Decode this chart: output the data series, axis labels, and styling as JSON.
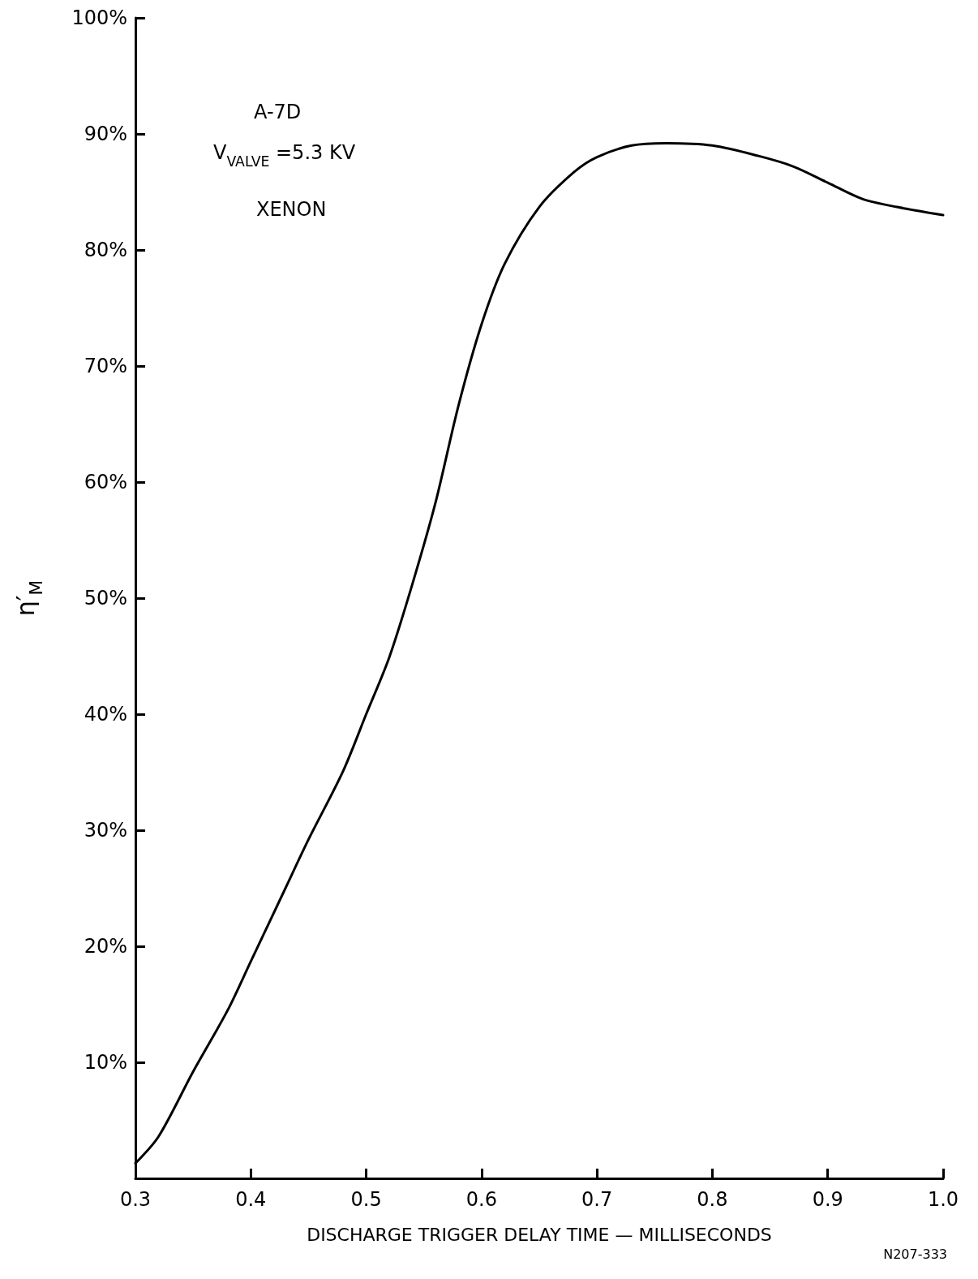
{
  "chart_data": {
    "type": "line",
    "xlabel": "DISCHARGE TRIGGER DELAY TIME — MILLISECONDS",
    "ylabel": "η′$_{M}$",
    "annotations": [
      "A-7D",
      "V$_{VALVE}$ =5.3 KV",
      "XENON",
      "N207-333"
    ],
    "x": [
      0.3,
      0.32,
      0.35,
      0.38,
      0.4,
      0.43,
      0.45,
      0.48,
      0.5,
      0.52,
      0.54,
      0.56,
      0.58,
      0.6,
      0.62,
      0.65,
      0.68,
      0.7,
      0.73,
      0.76,
      0.8,
      0.84,
      0.87,
      0.9,
      0.93,
      0.96,
      1.0
    ],
    "series": [
      {
        "color": "#000000",
        "values": [
          1.3,
          3.6,
          9.2,
          14.5,
          18.7,
          25,
          29.2,
          35.1,
          40,
          44.9,
          51.2,
          58.2,
          66.6,
          73.6,
          78.8,
          83.7,
          86.7,
          88,
          89,
          89.2,
          89,
          88.1,
          87.2,
          85.8,
          84.4,
          83.7,
          83
        ]
      }
    ],
    "xlim": [
      0.3,
      1.0
    ],
    "ylim": [
      0,
      100
    ],
    "xticks": [
      0.3,
      0.4,
      0.5,
      0.6,
      0.7,
      0.8,
      0.9,
      {
        "value": 1.0,
        "label": "1.0"
      }
    ],
    "yticks": [
      {
        "value": 10,
        "label": "10%"
      },
      {
        "value": 20,
        "label": "20%"
      },
      {
        "value": 30,
        "label": "30%"
      },
      {
        "value": 40,
        "label": "40%"
      },
      {
        "value": 50,
        "label": "50%"
      },
      {
        "value": 60,
        "label": "60%"
      },
      {
        "value": 70,
        "label": "70%"
      },
      {
        "value": 80,
        "label": "80%"
      },
      {
        "value": 90,
        "label": "90%"
      },
      {
        "value": 100,
        "label": "100%"
      }
    ],
    "grid": false,
    "marker": "none",
    "line_style": "solid"
  }
}
